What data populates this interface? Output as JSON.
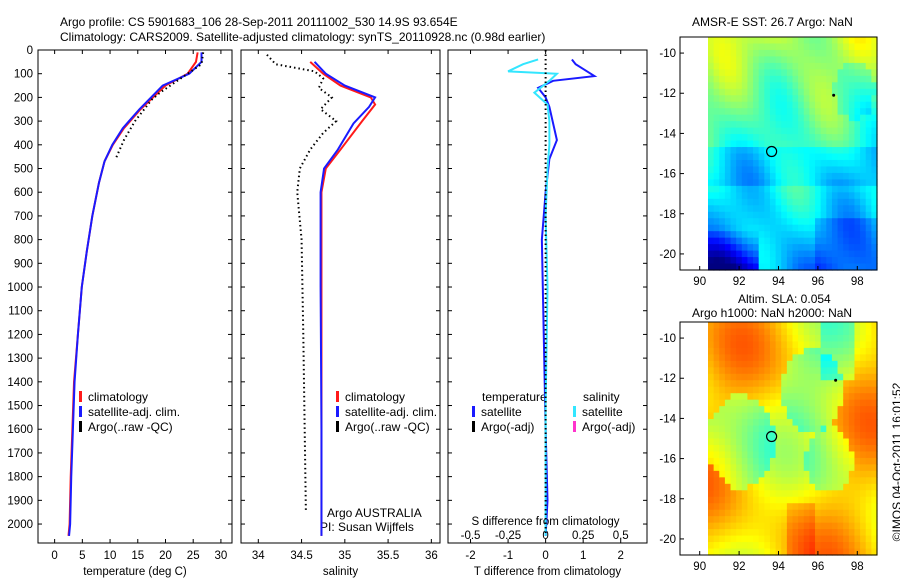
{
  "header": {
    "title_line1": "Argo profile: CS 5901683_106 28-Sep-2011 20111002_530 14.9S 93.654E",
    "title_line2": "Climatology: CARS2009. Satellite-adjusted climatology: synTS_20110928.nc (0.98d earlier)"
  },
  "colors": {
    "climatology": "#ff1a1a",
    "satellite": "#1a1aff",
    "argo": "#000000",
    "salinity_satellite": "#33e6ff",
    "salinity_argo": "#ff33cc"
  },
  "legend": {
    "climatology": "climatology",
    "satellite_adj": "satellite-adj. clim.",
    "argo_raw": "Argo(..raw -QC)",
    "temperature_header": "temperature",
    "salinity_header": "salinity",
    "satellite": "satellite",
    "argo_adj": "Argo(-adj)"
  },
  "annotations": {
    "argo_country": "Argo AUSTRALIA",
    "pi": "PI: Susan Wijffels",
    "sst_title": "AMSR-E SST: 26.7  Argo: NaN",
    "sla_title_line1": "Altim. SLA: 0.054",
    "sla_title_line2": "Argo h1000: NaN h2000: NaN",
    "credit": "©IMOS 04-Oct-2011 16:01:52"
  },
  "chart_data": [
    {
      "type": "line",
      "name": "temperature-profile",
      "xlabel": "temperature (deg C)",
      "ylabel": "",
      "xlim": [
        -3,
        32
      ],
      "ylim": [
        2080,
        0
      ],
      "xticks": [
        0,
        5,
        10,
        15,
        20,
        25,
        30
      ],
      "yticks": [
        0,
        100,
        200,
        300,
        400,
        500,
        600,
        700,
        800,
        900,
        1000,
        1100,
        1200,
        1300,
        1400,
        1500,
        1600,
        1700,
        1800,
        1900,
        2000
      ],
      "series": [
        {
          "name": "climatology",
          "style": "solid",
          "color": "#ff1a1a",
          "x": [
            25.8,
            25.5,
            24,
            20,
            15.5,
            12.5,
            10.5,
            9,
            8,
            6.8,
            5.8,
            4.9,
            4.2,
            3.5,
            3.2,
            2.9,
            2.7,
            2.5
          ],
          "y": [
            10,
            50,
            100,
            150,
            250,
            330,
            400,
            470,
            560,
            700,
            850,
            1000,
            1200,
            1400,
            1600,
            1800,
            2000,
            2050
          ]
        },
        {
          "name": "satellite-adj. clim.",
          "style": "solid",
          "color": "#1a1aff",
          "x": [
            26.5,
            26.5,
            24.3,
            19.5,
            15.3,
            12.3,
            10.4,
            9,
            8,
            6.8,
            5.8,
            4.9,
            4.2,
            3.6,
            3.3,
            3.0,
            2.8,
            2.6
          ],
          "y": [
            10,
            50,
            100,
            150,
            250,
            330,
            400,
            470,
            560,
            700,
            850,
            1000,
            1200,
            1400,
            1600,
            1800,
            2000,
            2050
          ]
        },
        {
          "name": "Argo(..raw -QC)",
          "style": "dotted",
          "color": "#000000",
          "x": [
            26.8,
            26.5,
            24,
            19,
            17.5,
            14.5,
            12.5,
            11
          ],
          "y": [
            10,
            60,
            100,
            180,
            210,
            300,
            380,
            460
          ]
        }
      ]
    },
    {
      "type": "line",
      "name": "salinity-profile",
      "xlabel": "salinity",
      "ylabel": "",
      "xlim": [
        33.8,
        36.1
      ],
      "ylim": [
        2080,
        0
      ],
      "xticks": [
        34,
        34.5,
        35,
        35.5,
        36
      ],
      "series": [
        {
          "name": "climatology",
          "style": "solid",
          "color": "#ff1a1a",
          "x": [
            34.6,
            34.75,
            34.95,
            35.3,
            35.35,
            35.2,
            34.95,
            34.78,
            34.73,
            34.73,
            34.73,
            34.73
          ],
          "y": [
            50,
            100,
            150,
            200,
            230,
            300,
            420,
            500,
            600,
            1000,
            1600,
            2050
          ]
        },
        {
          "name": "satellite-adj. clim.",
          "style": "solid",
          "color": "#1a1aff",
          "x": [
            34.65,
            34.78,
            35.0,
            35.35,
            35.28,
            35.1,
            34.92,
            34.76,
            34.72,
            34.72,
            34.73,
            34.73
          ],
          "y": [
            50,
            100,
            150,
            200,
            240,
            310,
            420,
            500,
            600,
            1000,
            1600,
            2050
          ]
        },
        {
          "name": "Argo(..raw -QC)",
          "style": "dotted",
          "color": "#000000",
          "x": [
            34.1,
            34.2,
            34.65,
            34.75,
            34.7,
            34.85,
            34.72,
            34.9,
            34.75,
            34.6,
            34.48,
            34.45,
            34.5,
            34.52,
            34.55
          ],
          "y": [
            20,
            60,
            90,
            120,
            160,
            200,
            250,
            300,
            350,
            420,
            500,
            600,
            800,
            1200,
            1950
          ]
        }
      ]
    },
    {
      "type": "line",
      "name": "difference-profile",
      "xlabel": "T difference from climatology",
      "top_label": "S difference from climatology",
      "xlim": [
        -2.6,
        2.7
      ],
      "ylim": [
        2080,
        0
      ],
      "xticks": [
        -2,
        -1,
        0,
        1,
        2
      ],
      "top_ticks": [
        {
          "label": "-0.5",
          "x": -2
        },
        {
          "label": "-0.25",
          "x": -1
        },
        {
          "label": "0",
          "x": 0
        },
        {
          "label": "0.25",
          "x": 1
        },
        {
          "label": "0.5",
          "x": 2
        }
      ],
      "series": [
        {
          "name": "temperature satellite",
          "style": "solid",
          "color": "#1a1aff",
          "x": [
            0.7,
            0.8,
            1.0,
            1.3,
            0.2,
            -0.2,
            0,
            0.1,
            0.3,
            0.1,
            0,
            -0.1,
            -0.05,
            0,
            0.05,
            0
          ],
          "y": [
            40,
            60,
            80,
            110,
            130,
            160,
            200,
            240,
            380,
            460,
            600,
            800,
            1200,
            1600,
            1900,
            2050
          ]
        },
        {
          "name": "salinity satellite",
          "style": "solid",
          "color": "#33e6ff",
          "x": [
            -0.2,
            -0.6,
            -1.0,
            0.3,
            0.1,
            -0.3,
            0.05,
            0.1,
            0.1,
            0.05,
            0,
            0.05,
            0,
            0
          ],
          "y": [
            40,
            60,
            90,
            100,
            130,
            180,
            230,
            300,
            400,
            500,
            700,
            1000,
            1500,
            2050
          ]
        },
        {
          "name": "zero reference",
          "style": "dotted",
          "color": "#000000",
          "x": [
            0,
            0
          ],
          "y": [
            0,
            2050
          ]
        }
      ]
    },
    {
      "type": "heatmap",
      "name": "sst-map",
      "title": "AMSR-E SST: 26.7  Argo: NaN",
      "xlim": [
        89,
        99
      ],
      "ylim": [
        -20.8,
        -9.2
      ],
      "xticks": [
        90,
        92,
        94,
        96,
        98
      ],
      "yticks": [
        -10,
        -12,
        -14,
        -16,
        -18,
        -20
      ],
      "marker": {
        "lon": 93.65,
        "lat": -14.9
      },
      "point": {
        "lon": 96.8,
        "lat": -12.1
      }
    },
    {
      "type": "heatmap",
      "name": "sla-map",
      "title": "Altim. SLA: 0.054 / Argo h1000: NaN h2000: NaN",
      "xlim": [
        89,
        99
      ],
      "ylim": [
        -20.8,
        -9.2
      ],
      "xticks": [
        90,
        92,
        94,
        96,
        98
      ],
      "yticks": [
        -10,
        -12,
        -14,
        -16,
        -18,
        -20
      ],
      "marker": {
        "lon": 93.65,
        "lat": -14.9
      },
      "point": {
        "lon": 96.9,
        "lat": -12.1
      }
    }
  ]
}
